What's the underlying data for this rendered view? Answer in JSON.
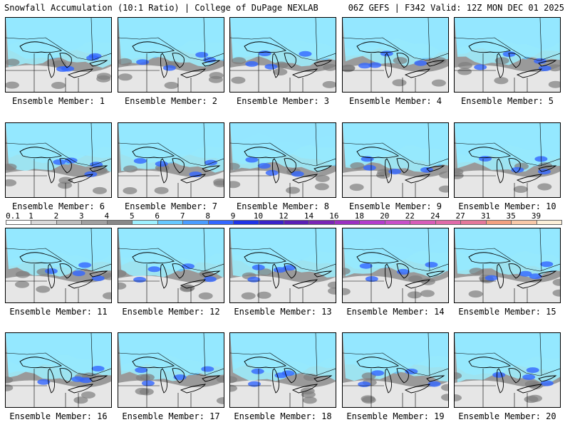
{
  "header": {
    "left": "Snowfall Accumulation (10:1 Ratio) | College of DuPage NEXLAB",
    "right": "06Z GEFS | F342 Valid: 12Z MON DEC 01 2025"
  },
  "members": [
    {
      "label": "Ensemble Member: 1",
      "intensity": 0.55
    },
    {
      "label": "Ensemble Member: 2",
      "intensity": 0.6
    },
    {
      "label": "Ensemble Member: 3",
      "intensity": 0.62
    },
    {
      "label": "Ensemble Member: 4",
      "intensity": 0.66
    },
    {
      "label": "Ensemble Member: 5",
      "intensity": 0.72
    },
    {
      "label": "Ensemble Member: 6",
      "intensity": 0.6
    },
    {
      "label": "Ensemble Member: 7",
      "intensity": 0.62
    },
    {
      "label": "Ensemble Member: 8",
      "intensity": 0.63
    },
    {
      "label": "Ensemble Member: 9",
      "intensity": 0.58
    },
    {
      "label": "Ensemble Member: 10",
      "intensity": 0.5
    },
    {
      "label": "Ensemble Member: 11",
      "intensity": 0.6
    },
    {
      "label": "Ensemble Member: 12",
      "intensity": 0.45
    },
    {
      "label": "Ensemble Member: 13",
      "intensity": 0.62
    },
    {
      "label": "Ensemble Member: 14",
      "intensity": 0.64
    },
    {
      "label": "Ensemble Member: 15",
      "intensity": 0.5
    },
    {
      "label": "Ensemble Member: 16",
      "intensity": 0.6
    },
    {
      "label": "Ensemble Member: 17",
      "intensity": 0.6
    },
    {
      "label": "Ensemble Member: 18",
      "intensity": 0.58
    },
    {
      "label": "Ensemble Member: 19",
      "intensity": 0.7
    },
    {
      "label": "Ensemble Member: 20",
      "intensity": 0.48
    }
  ],
  "legend": {
    "ticks": [
      "0.1",
      "1",
      "2",
      "3",
      "4",
      "5",
      "6",
      "7",
      "8",
      "9",
      "10",
      "12",
      "14",
      "16",
      "18",
      "20",
      "22",
      "24",
      "27",
      "31",
      "35",
      "39"
    ],
    "colors": [
      "#ffffff",
      "#d9d9d9",
      "#bdbdbd",
      "#a0a0a0",
      "#888888",
      "#9ef0ff",
      "#66c8ff",
      "#4a9cff",
      "#3366ff",
      "#1f33e6",
      "#3a22c8",
      "#5a1fb4",
      "#7a24b4",
      "#9a30c0",
      "#b43ccc",
      "#c84fc8",
      "#d85cb8",
      "#e06aa8",
      "#e4789a",
      "#f2a080",
      "#f8c8a8",
      "#fcefd8"
    ]
  }
}
